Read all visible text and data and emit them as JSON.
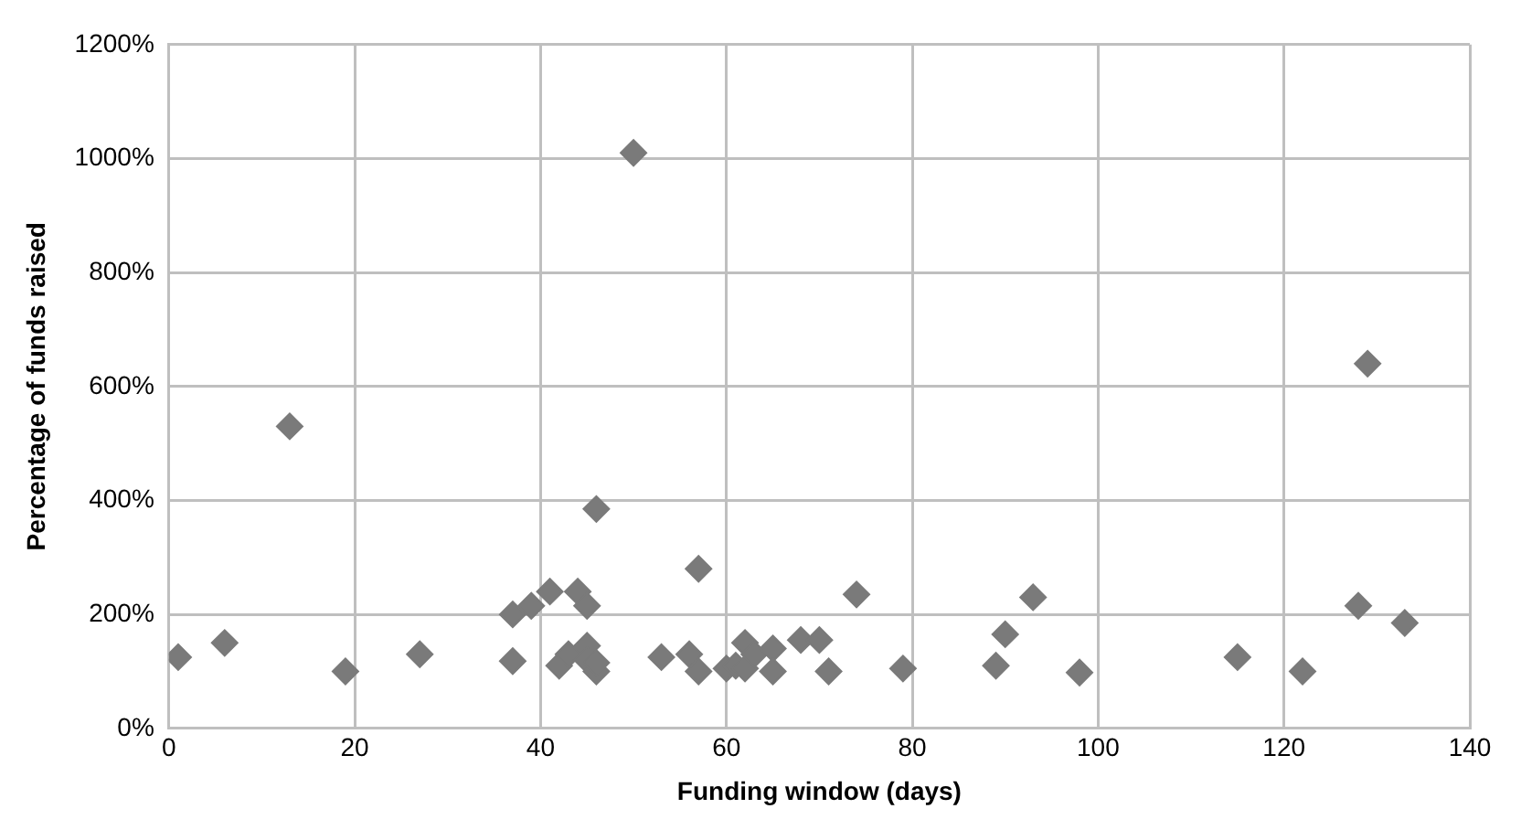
{
  "chart_data": {
    "type": "scatter",
    "xlabel": "Funding window (days)",
    "ylabel": "Percentage of funds raised",
    "x": [
      1,
      6,
      13,
      19,
      27,
      37,
      37,
      39,
      41,
      42,
      43,
      44,
      45,
      45,
      45,
      46,
      46,
      46,
      50,
      53,
      56,
      57,
      57,
      60,
      61,
      62,
      62,
      63,
      65,
      65,
      68,
      70,
      71,
      74,
      79,
      89,
      90,
      93,
      98,
      115,
      122,
      128,
      129,
      133
    ],
    "series": [
      {
        "color": "#7a7a7a",
        "values": [
          125,
          150,
          530,
          100,
          130,
          200,
          118,
          215,
          240,
          110,
          130,
          240,
          215,
          145,
          120,
          100,
          115,
          385,
          1010,
          125,
          130,
          280,
          100,
          105,
          110,
          150,
          105,
          130,
          140,
          100,
          155,
          155,
          100,
          235,
          105,
          110,
          165,
          230,
          98,
          125,
          100,
          215,
          640,
          185
        ]
      }
    ],
    "xlim": [
      0,
      140
    ],
    "xticks": [
      0,
      20,
      40,
      60,
      80,
      100,
      120,
      140
    ],
    "ylim": [
      0,
      1200
    ],
    "yticks": [
      {
        "value": 0,
        "label": "0%"
      },
      {
        "value": 200,
        "label": "200%"
      },
      {
        "value": 400,
        "label": "400%"
      },
      {
        "value": 600,
        "label": "600%"
      },
      {
        "value": 800,
        "label": "800%"
      },
      {
        "value": 1000,
        "label": "1000%"
      },
      {
        "value": 1200,
        "label": "1200%"
      }
    ],
    "grid": true,
    "marker": "diamond"
  }
}
